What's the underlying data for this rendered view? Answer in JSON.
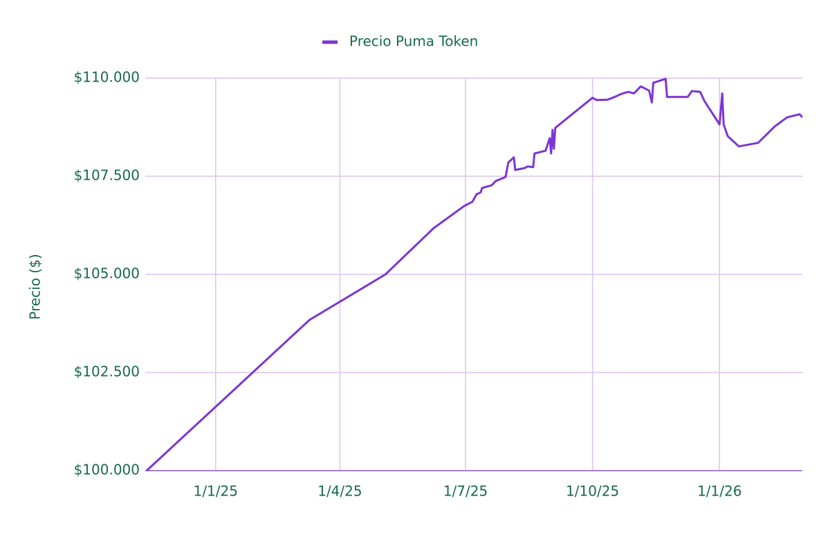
{
  "chart_data": {
    "type": "line",
    "y_label": "Precio ($)",
    "grid": true,
    "legend": "top",
    "x": [
      "2024-11-12",
      "2025-03-10",
      "2025-05-04",
      "2025-06-08",
      "2025-06-30",
      "2025-07-06",
      "2025-07-09",
      "2025-07-12",
      "2025-07-13",
      "2025-07-20",
      "2025-07-23",
      "2025-07-30",
      "2025-08-01",
      "2025-08-05",
      "2025-08-06",
      "2025-08-13",
      "2025-08-15",
      "2025-08-19",
      "2025-08-20",
      "2025-08-28",
      "2025-08-31",
      "2025-09-01",
      "2025-09-02",
      "2025-09-03",
      "2025-09-04",
      "2025-09-30",
      "2025-10-01",
      "2025-10-04",
      "2025-10-12",
      "2025-10-17",
      "2025-10-22",
      "2025-10-27",
      "2025-10-31",
      "2025-11-05",
      "2025-11-11",
      "2025-11-13",
      "2025-11-14",
      "2025-11-23",
      "2025-11-24",
      "2025-12-09",
      "2025-12-12",
      "2025-12-18",
      "2025-12-21",
      "2026-01-01",
      "2026-01-03",
      "2026-01-04",
      "2026-01-07",
      "2026-01-15",
      "2026-01-29",
      "2026-02-10",
      "2026-02-19",
      "2026-02-28",
      "2026-03-02"
    ],
    "series": [
      {
        "name": "Precio Puma Token",
        "color": "#7b35d4",
        "values": [
          100000,
          103840,
          105000,
          106180,
          106740,
          106850,
          107040,
          107090,
          107200,
          107270,
          107380,
          107480,
          107850,
          107980,
          107660,
          107710,
          107750,
          107730,
          108080,
          108150,
          108470,
          108080,
          108680,
          108200,
          108730,
          109470,
          109500,
          109440,
          109450,
          109520,
          109600,
          109650,
          109610,
          109790,
          109680,
          109380,
          109880,
          109980,
          109520,
          109520,
          109670,
          109650,
          109420,
          108820,
          109610,
          108820,
          108520,
          108260,
          108350,
          108770,
          109000,
          109080,
          109000
        ]
      }
    ],
    "xlim": [
      "2024-11-11",
      "2026-03-02"
    ],
    "xticks": [
      {
        "value": "2025-01-01",
        "label": "1/1/25"
      },
      {
        "value": "2025-04-01",
        "label": "1/4/25"
      },
      {
        "value": "2025-07-01",
        "label": "1/7/25"
      },
      {
        "value": "2025-10-01",
        "label": "1/10/25"
      },
      {
        "value": "2026-01-01",
        "label": "1/1/26"
      }
    ],
    "ylim": [
      100000,
      110000
    ],
    "yticks": [
      {
        "value": 100000,
        "label": "$100.000"
      },
      {
        "value": 102500,
        "label": "$102.500"
      },
      {
        "value": 105000,
        "label": "$105.000"
      },
      {
        "value": 107500,
        "label": "$107.500"
      },
      {
        "value": 110000,
        "label": "$110.000"
      }
    ]
  }
}
